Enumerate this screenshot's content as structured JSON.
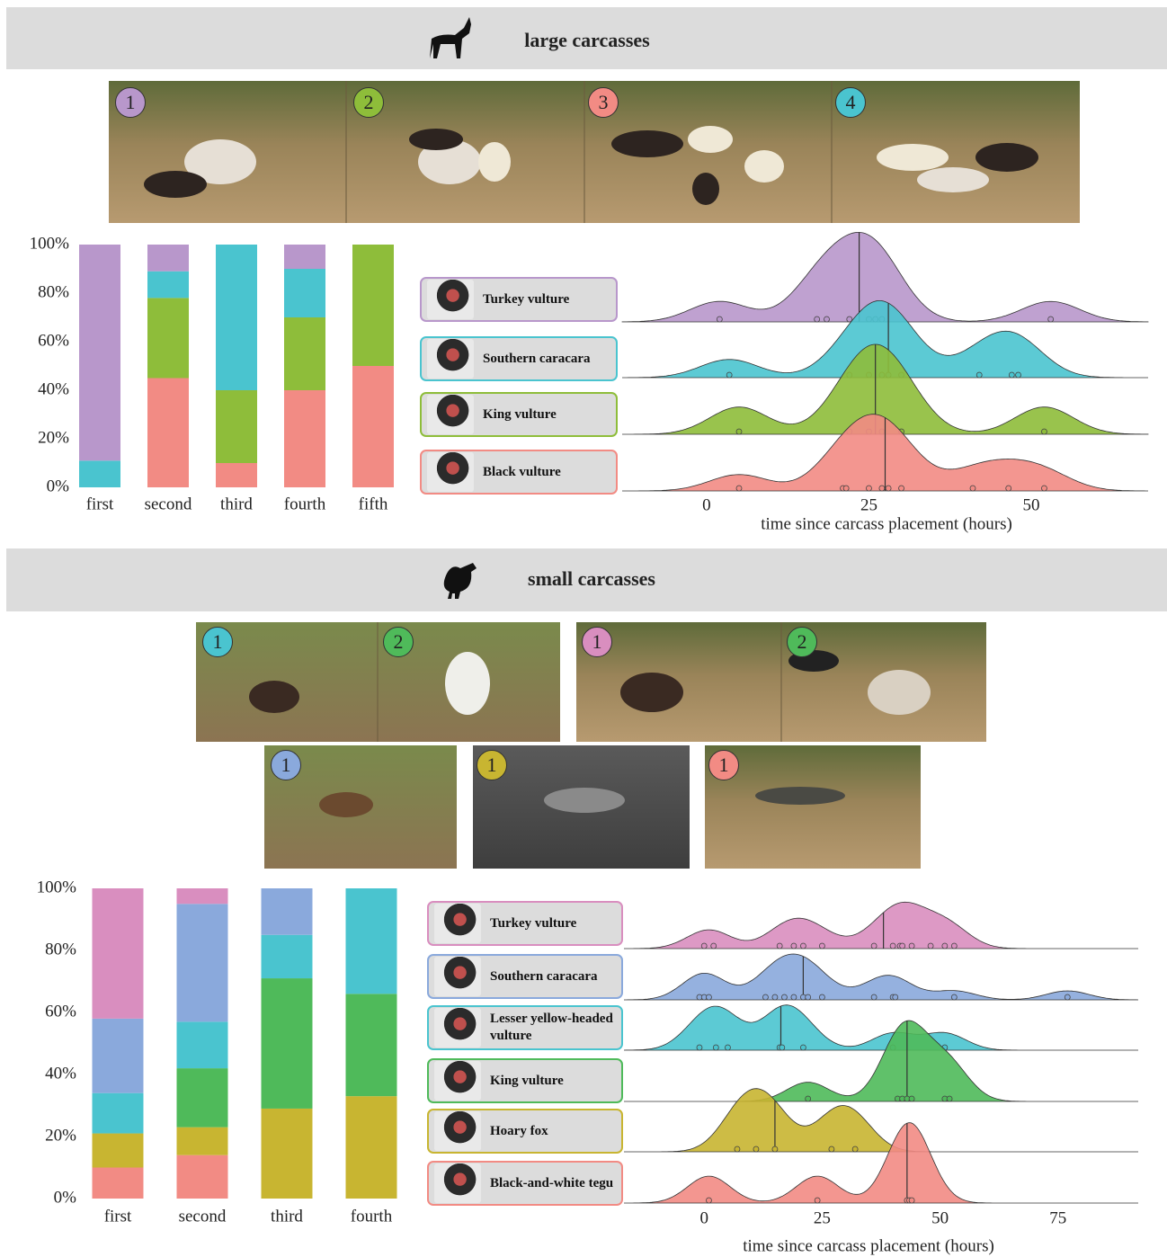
{
  "sections": [
    {
      "title": "large carcasses",
      "photo_labels": [
        1,
        2,
        3,
        4
      ]
    },
    {
      "title": "small carcasses",
      "photo_labels": [
        1,
        2,
        1,
        2,
        1,
        1,
        1
      ]
    }
  ],
  "chart_data": [
    {
      "type": "bar",
      "categories": [
        "first",
        "second",
        "third",
        "fourth",
        "fifth"
      ],
      "ylim": [
        0,
        100
      ],
      "yticks": [
        {
          "value": 0,
          "label": "0%"
        },
        {
          "value": 20,
          "label": "20%"
        },
        {
          "value": 40,
          "label": "40%"
        },
        {
          "value": 60,
          "label": "60%"
        },
        {
          "value": 80,
          "label": "80%"
        },
        {
          "value": 100,
          "label": "100%"
        }
      ],
      "series": [
        {
          "color": "#f28b84",
          "values": [
            0,
            45,
            10,
            40,
            50
          ]
        },
        {
          "color": "#8ebd3a",
          "values": [
            0,
            33,
            30,
            30,
            50
          ]
        },
        {
          "color": "#4ac4cf",
          "values": [
            11,
            11,
            60,
            20,
            0
          ]
        },
        {
          "color": "#b897cb",
          "values": [
            89,
            11,
            0,
            10,
            0
          ]
        }
      ]
    },
    {
      "type": "ridgeline",
      "xlabel": "time since carcass placement (hours)",
      "xlim": [
        -13,
        68
      ],
      "xticks": [
        0,
        25,
        50
      ],
      "series": [
        {
          "name": "Turkey vulture",
          "color": "#b897cb",
          "values": [
            2,
            17,
            18.5,
            22,
            25,
            26,
            27,
            53
          ]
        },
        {
          "name": "Southern caracara",
          "color": "#4ac4cf",
          "values": [
            3.5,
            22,
            25,
            27,
            28,
            30,
            42,
            47,
            48
          ]
        },
        {
          "name": "King vulture",
          "color": "#8ebd3a",
          "values": [
            5,
            22,
            25,
            27,
            30,
            52
          ]
        },
        {
          "name": "Black vulture",
          "color": "#f28b84",
          "values": [
            5,
            21,
            21.5,
            25,
            27,
            28,
            30,
            41,
            46.5,
            52
          ]
        }
      ]
    },
    {
      "type": "bar",
      "categories": [
        "first",
        "second",
        "third",
        "fourth"
      ],
      "ylim": [
        0,
        100
      ],
      "yticks": [
        {
          "value": 0,
          "label": "0%"
        },
        {
          "value": 20,
          "label": "20%"
        },
        {
          "value": 40,
          "label": "40%"
        },
        {
          "value": 60,
          "label": "60%"
        },
        {
          "value": 80,
          "label": "80%"
        },
        {
          "value": 100,
          "label": "100%"
        }
      ],
      "series": [
        {
          "color": "#f28b84",
          "values": [
            10,
            14,
            0,
            0
          ]
        },
        {
          "color": "#c8b531",
          "values": [
            11,
            9,
            29,
            33
          ]
        },
        {
          "color": "#4fba5a",
          "values": [
            0,
            19,
            42,
            33
          ]
        },
        {
          "color": "#4ac4cf",
          "values": [
            13,
            15,
            14,
            34
          ]
        },
        {
          "color": "#8aa9dc",
          "values": [
            24,
            38,
            15,
            0
          ]
        },
        {
          "color": "#d98ebf",
          "values": [
            42,
            5,
            0,
            0
          ]
        }
      ]
    },
    {
      "type": "ridgeline",
      "xlabel": "time since carcass placement (hours)",
      "xlim": [
        -17,
        92
      ],
      "xticks": [
        0,
        25,
        50,
        75
      ],
      "series": [
        {
          "name": "Turkey vulture",
          "color": "#d98ebf",
          "values": [
            0,
            2,
            16,
            19,
            21,
            25,
            36,
            40,
            41.5,
            42,
            44,
            48,
            51,
            53
          ]
        },
        {
          "name": "Southern caracara",
          "color": "#8aa9dc",
          "values": [
            -1,
            0,
            1,
            13,
            15,
            17,
            19,
            21,
            22,
            25,
            36,
            40,
            40.5,
            53,
            77
          ]
        },
        {
          "name": "Lesser yellow-headed vulture",
          "color": "#4ac4cf",
          "values": [
            -1,
            2.5,
            5,
            16,
            16.5,
            21,
            40,
            51
          ]
        },
        {
          "name": "King vulture",
          "color": "#4fba5a",
          "values": [
            22,
            41,
            42,
            43,
            44,
            51,
            52
          ]
        },
        {
          "name": "Hoary fox",
          "color": "#c8b531",
          "values": [
            7,
            11,
            15,
            27,
            32
          ]
        },
        {
          "name": "Black-and-white tegu",
          "color": "#f28b84",
          "values": [
            1,
            24,
            43,
            43.5,
            44
          ]
        }
      ]
    }
  ]
}
